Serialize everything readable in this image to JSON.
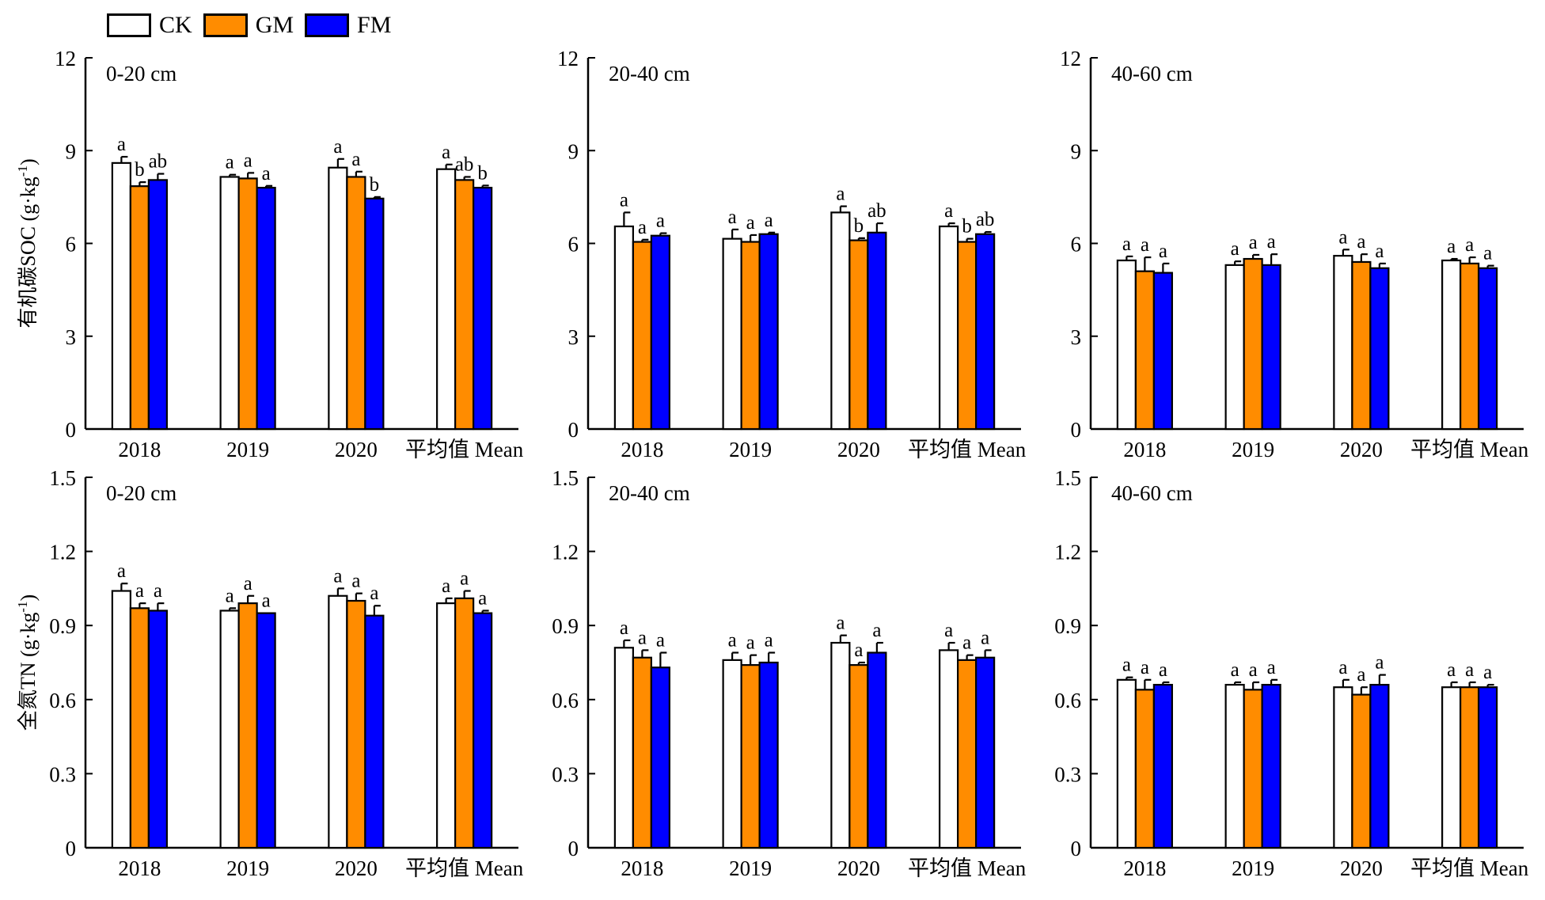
{
  "legend": {
    "items": [
      {
        "name": "CK",
        "color": "#ffffff"
      },
      {
        "name": "GM",
        "color": "#ff8c00"
      },
      {
        "name": "FM",
        "color": "#0000ff"
      }
    ]
  },
  "chart_data": [
    {
      "type": "bar",
      "title": "0-20 cm",
      "ylabel": "有机碳SOC (g·kg-1)",
      "ylim": [
        0,
        12
      ],
      "yticks": [
        "0",
        "3",
        "6",
        "9",
        "12"
      ],
      "categories": [
        "2018",
        "2019",
        "2020",
        "平均值 Mean"
      ],
      "series": [
        {
          "name": "CK",
          "values": [
            8.6,
            8.15,
            8.45,
            8.4
          ],
          "errors": [
            0.2,
            0.07,
            0.28,
            0.15
          ],
          "labels": [
            "a",
            "a",
            "a",
            "a"
          ]
        },
        {
          "name": "GM",
          "values": [
            7.85,
            8.1,
            8.15,
            8.05
          ],
          "errors": [
            0.13,
            0.18,
            0.17,
            0.1
          ],
          "labels": [
            "b",
            "a",
            "a",
            "ab"
          ]
        },
        {
          "name": "FM",
          "values": [
            8.05,
            7.8,
            7.45,
            7.8
          ],
          "errors": [
            0.2,
            0.06,
            0.05,
            0.07
          ],
          "labels": [
            "ab",
            "a",
            "b",
            "b"
          ]
        }
      ]
    },
    {
      "type": "bar",
      "title": "20-40 cm",
      "ylabel": "",
      "ylim": [
        0,
        12
      ],
      "yticks": [
        "0",
        "3",
        "6",
        "9",
        "12"
      ],
      "categories": [
        "2018",
        "2019",
        "2020",
        "平均值 Mean"
      ],
      "series": [
        {
          "name": "CK",
          "values": [
            6.55,
            6.15,
            7.0,
            6.55
          ],
          "errors": [
            0.45,
            0.3,
            0.2,
            0.1
          ],
          "labels": [
            "a",
            "a",
            "a",
            "a"
          ]
        },
        {
          "name": "GM",
          "values": [
            6.05,
            6.05,
            6.1,
            6.05
          ],
          "errors": [
            0.07,
            0.22,
            0.07,
            0.1
          ],
          "labels": [
            "a",
            "a",
            "b",
            "b"
          ]
        },
        {
          "name": "FM",
          "values": [
            6.25,
            6.3,
            6.35,
            6.3
          ],
          "errors": [
            0.08,
            0.05,
            0.3,
            0.07
          ],
          "labels": [
            "a",
            "a",
            "ab",
            "ab"
          ]
        }
      ]
    },
    {
      "type": "bar",
      "title": "40-60 cm",
      "ylabel": "",
      "ylim": [
        0,
        12
      ],
      "yticks": [
        "0",
        "3",
        "6",
        "9",
        "12"
      ],
      "categories": [
        "2018",
        "2019",
        "2020",
        "平均值 Mean"
      ],
      "series": [
        {
          "name": "CK",
          "values": [
            5.45,
            5.3,
            5.6,
            5.45
          ],
          "errors": [
            0.13,
            0.12,
            0.2,
            0.05
          ],
          "labels": [
            "a",
            "a",
            "a",
            "a"
          ]
        },
        {
          "name": "GM",
          "values": [
            5.1,
            5.5,
            5.4,
            5.35
          ],
          "errors": [
            0.45,
            0.13,
            0.25,
            0.2
          ],
          "labels": [
            "a",
            "a",
            "a",
            "a"
          ]
        },
        {
          "name": "FM",
          "values": [
            5.05,
            5.3,
            5.2,
            5.2
          ],
          "errors": [
            0.3,
            0.35,
            0.15,
            0.08
          ],
          "labels": [
            "a",
            "a",
            "a",
            "a"
          ]
        }
      ]
    },
    {
      "type": "bar",
      "title": "0-20 cm",
      "ylabel": "全氮TN (g·kg-1)",
      "ylim": [
        0,
        1.5
      ],
      "yticks": [
        "0",
        "0.3",
        "0.6",
        "0.9",
        "1.2",
        "1.5"
      ],
      "categories": [
        "2018",
        "2019",
        "2020",
        "平均值 Mean"
      ],
      "series": [
        {
          "name": "CK",
          "values": [
            1.04,
            0.96,
            1.02,
            0.99
          ],
          "errors": [
            0.03,
            0.01,
            0.03,
            0.02
          ],
          "labels": [
            "a",
            "a",
            "a",
            "a"
          ]
        },
        {
          "name": "GM",
          "values": [
            0.97,
            0.99,
            1.0,
            1.01
          ],
          "errors": [
            0.02,
            0.03,
            0.03,
            0.03
          ],
          "labels": [
            "a",
            "a",
            "a",
            "a"
          ]
        },
        {
          "name": "FM",
          "values": [
            0.96,
            0.95,
            0.94,
            0.95
          ],
          "errors": [
            0.03,
            0.0,
            0.04,
            0.01
          ],
          "labels": [
            "a",
            "a",
            "a",
            "a"
          ]
        }
      ]
    },
    {
      "type": "bar",
      "title": "20-40 cm",
      "ylabel": "",
      "ylim": [
        0,
        1.5
      ],
      "yticks": [
        "0",
        "0.3",
        "0.6",
        "0.9",
        "1.2",
        "1.5"
      ],
      "categories": [
        "2018",
        "2019",
        "2020",
        "平均值 Mean"
      ],
      "series": [
        {
          "name": "CK",
          "values": [
            0.81,
            0.76,
            0.83,
            0.8
          ],
          "errors": [
            0.03,
            0.03,
            0.03,
            0.03
          ],
          "labels": [
            "a",
            "a",
            "a",
            "a"
          ]
        },
        {
          "name": "GM",
          "values": [
            0.77,
            0.74,
            0.74,
            0.76
          ],
          "errors": [
            0.03,
            0.04,
            0.01,
            0.02
          ],
          "labels": [
            "a",
            "a",
            "a",
            "a"
          ]
        },
        {
          "name": "FM",
          "values": [
            0.73,
            0.75,
            0.79,
            0.77
          ],
          "errors": [
            0.06,
            0.04,
            0.04,
            0.03
          ],
          "labels": [
            "a",
            "a",
            "a",
            "a"
          ]
        }
      ]
    },
    {
      "type": "bar",
      "title": "40-60 cm",
      "ylabel": "",
      "ylim": [
        0,
        1.5
      ],
      "yticks": [
        "0",
        "0.3",
        "0.6",
        "0.9",
        "1.2",
        "1.5"
      ],
      "categories": [
        "2018",
        "2019",
        "2020",
        "平均值 Mean"
      ],
      "series": [
        {
          "name": "CK",
          "values": [
            0.68,
            0.66,
            0.65,
            0.65
          ],
          "errors": [
            0.01,
            0.01,
            0.03,
            0.02
          ],
          "labels": [
            "a",
            "a",
            "a",
            "a"
          ]
        },
        {
          "name": "GM",
          "values": [
            0.64,
            0.64,
            0.62,
            0.65
          ],
          "errors": [
            0.04,
            0.03,
            0.03,
            0.02
          ],
          "labels": [
            "a",
            "a",
            "a",
            "a"
          ]
        },
        {
          "name": "FM",
          "values": [
            0.66,
            0.66,
            0.66,
            0.65
          ],
          "errors": [
            0.01,
            0.02,
            0.04,
            0.01
          ],
          "labels": [
            "a",
            "a",
            "a",
            "a"
          ]
        }
      ]
    }
  ]
}
